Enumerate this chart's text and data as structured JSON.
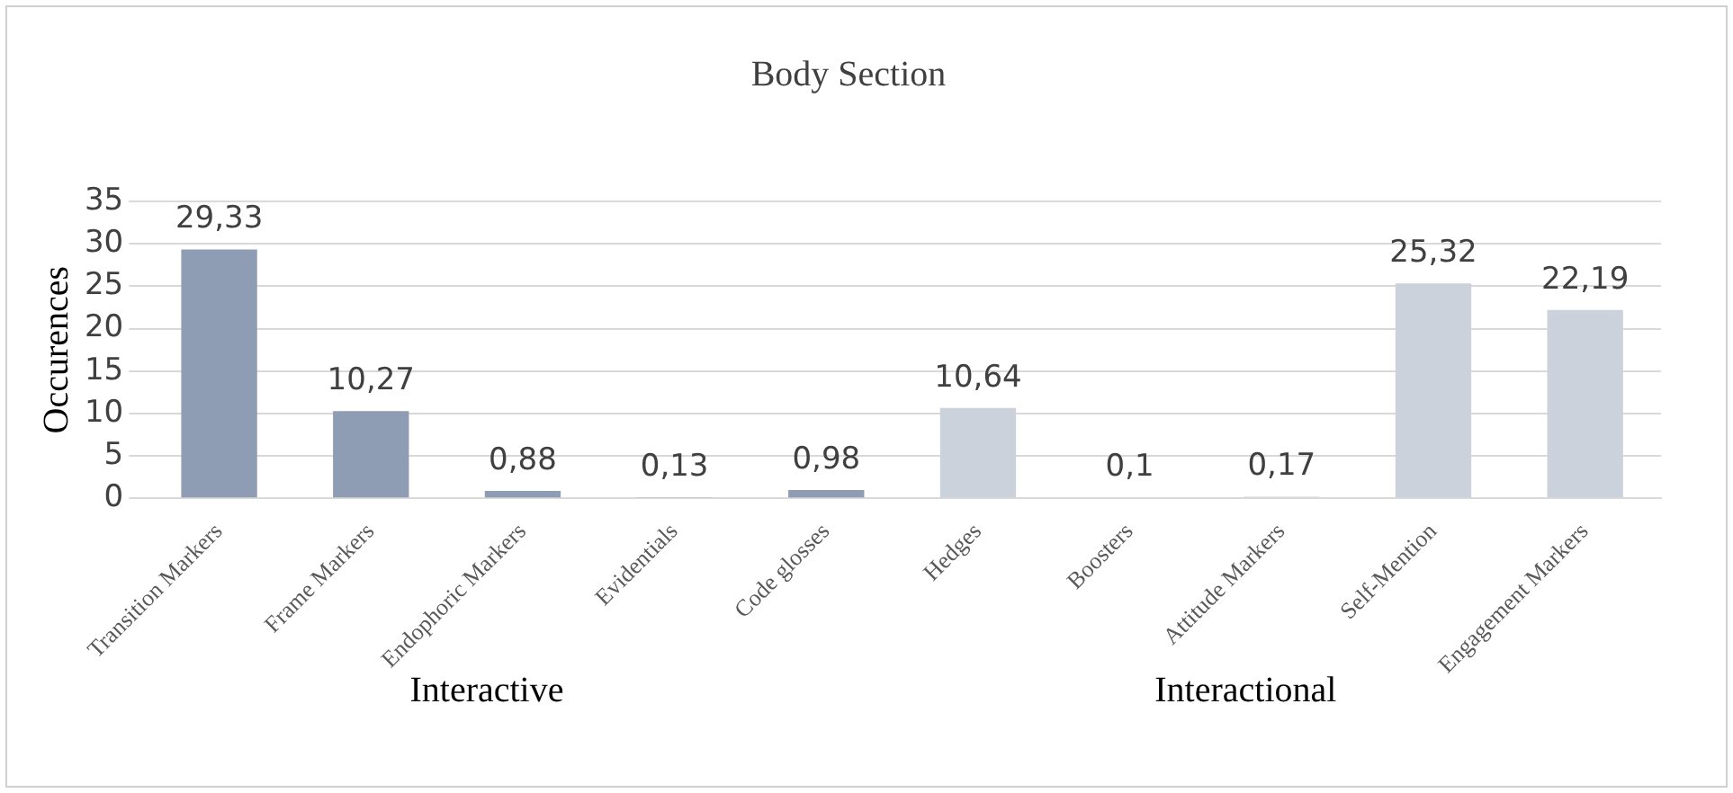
{
  "chart_data": {
    "type": "bar",
    "title": "Body Section",
    "ylabel": "Occurences",
    "categories": [
      "Transition Markers",
      "Frame Markers",
      "Endophoric Markers",
      "Evidentials",
      "Code glosses",
      "Hedges",
      "Boosters",
      "Attitude Markers",
      "Self-Mention",
      "Engagement Markers"
    ],
    "values": [
      29.33,
      10.27,
      0.88,
      0.13,
      0.98,
      10.64,
      0.1,
      0.17,
      25.32,
      22.19
    ],
    "colors": [
      "#8e9cb4",
      "#8e9cb4",
      "#8e9cb4",
      "#8e9cb4",
      "#8e9cb4",
      "#cbd2dc",
      "#cbd2dc",
      "#cbd2dc",
      "#cbd2dc",
      "#cbd2dc"
    ],
    "value_labels": [
      "29,33",
      "10,27",
      "0,88",
      "0,13",
      "0,98",
      "10,64",
      "0,1",
      "0,17",
      "25,32",
      "22,19"
    ],
    "ylim": [
      0,
      35
    ],
    "yticks": [
      0,
      5,
      10,
      15,
      20,
      25,
      30,
      35
    ],
    "grid": "y",
    "annotations": [
      "Interactive",
      "Interactional"
    ]
  }
}
